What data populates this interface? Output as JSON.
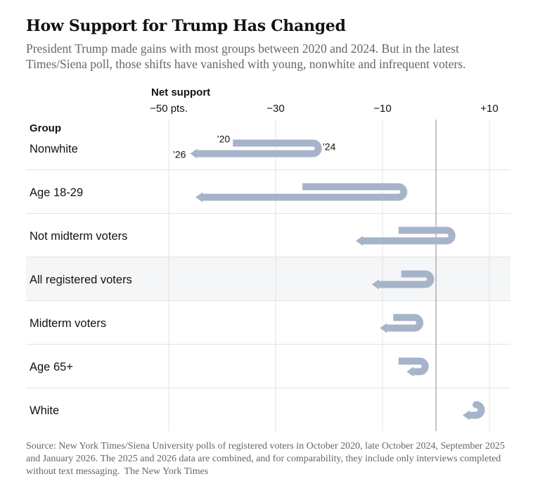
{
  "header": {
    "title": "How Support for Trump Has Changed",
    "subtitle": "President Trump made gains with most groups between 2020 and 2024. But in the latest Times/Siena poll, those shifts have vanished with young, nonwhite and infrequent voters."
  },
  "footer": {
    "source": "Source: New York Times/Siena University polls of registered voters in October 2020, late October 2024, September 2025 and January 2026. The 2025 and 2026 data are combined, and for comparability, they include only interviews completed without text messaging.",
    "credit": "The New York Times"
  },
  "colors": {
    "arrow": "#a6b4c9",
    "grid": "#e3e3e3",
    "zero_line": "#8a8a8a",
    "highlight_row": "#f5f6f7",
    "text": "#121212"
  },
  "chart_data": {
    "type": "arrow-dot",
    "axis_title": "Net support",
    "group_header": "Group",
    "x_range": [
      -77,
      14
    ],
    "ticks": [
      {
        "value": -50,
        "label": "−50 pts."
      },
      {
        "value": -30,
        "label": "−30"
      },
      {
        "value": -10,
        "label": "−10"
      },
      {
        "value": 10,
        "label": "+10"
      }
    ],
    "zero_value": 0,
    "year_labels": {
      "start": "’20",
      "turn": "’24",
      "end": "’26"
    },
    "rows": [
      {
        "name": "Nonwhite",
        "y2020": -38,
        "y2024": -23,
        "y2026": -46,
        "highlight": false
      },
      {
        "name": "Age 18-29",
        "y2020": -25,
        "y2024": -7,
        "y2026": -45,
        "highlight": false
      },
      {
        "name": "Not midterm voters",
        "y2020": -7,
        "y2024": 2,
        "y2026": -15,
        "highlight": false
      },
      {
        "name": "All registered voters",
        "y2020": -6.5,
        "y2024": -2,
        "y2026": -12,
        "highlight": true
      },
      {
        "name": "Midterm voters",
        "y2020": -8,
        "y2024": -4,
        "y2026": -10.5,
        "highlight": false
      },
      {
        "name": "Age 65+",
        "y2020": -7,
        "y2024": -3,
        "y2026": -5.5,
        "highlight": false
      },
      {
        "name": "White",
        "y2020": 8,
        "y2024": 7.5,
        "y2026": 5,
        "highlight": false
      }
    ]
  }
}
